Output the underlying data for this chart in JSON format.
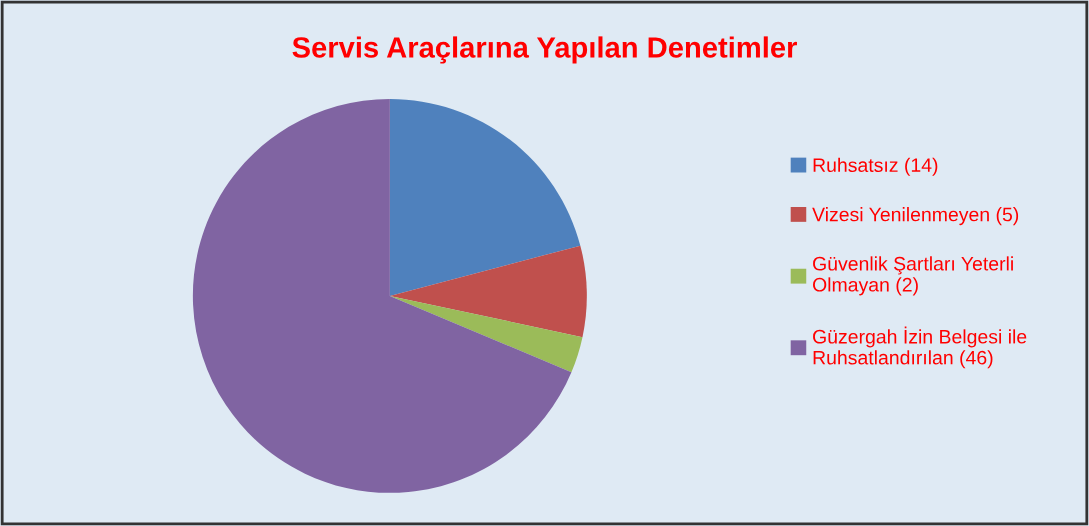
{
  "chart_data": {
    "type": "pie",
    "title": "Servis Araçlarına Yapılan Denetimler",
    "categories": [
      "Ruhsatsız (14)",
      "Vizesi Yenilenmeyen (5)",
      "Güvenlik Şartları Yeterli\nOlmayan (2)",
      "Güzergah İzin Belgesi ile\nRuhsatlandırılan (46)"
    ],
    "values": [
      14,
      5,
      2,
      46
    ],
    "colors": [
      "#4f81bd",
      "#c0504d",
      "#9bbb59",
      "#8064a2"
    ],
    "legend": "right"
  }
}
